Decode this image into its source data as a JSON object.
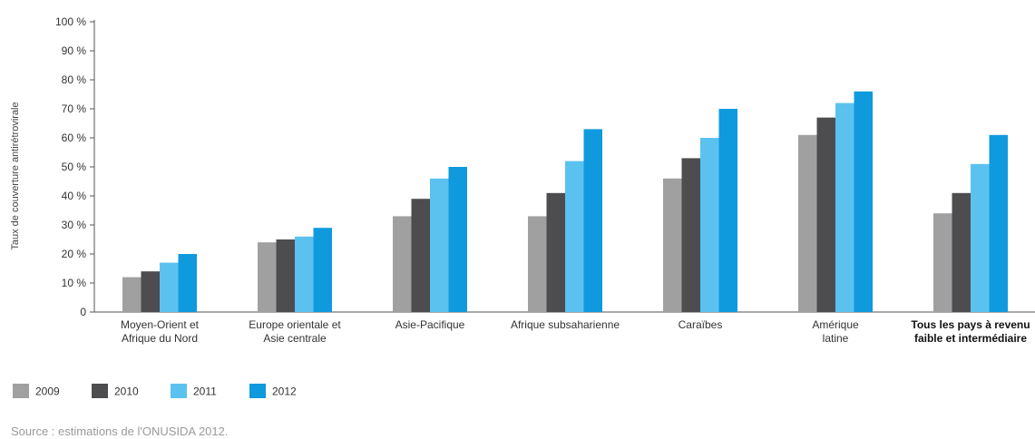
{
  "chart_data": {
    "type": "bar",
    "ylabel": "Taux de couverture antirétrovirale",
    "ylim": [
      0,
      100
    ],
    "yticks": [
      {
        "value": 0,
        "label": "0"
      },
      {
        "value": 10,
        "label": "10 %"
      },
      {
        "value": 20,
        "label": "20 %"
      },
      {
        "value": 30,
        "label": "30 %"
      },
      {
        "value": 40,
        "label": "40 %"
      },
      {
        "value": 50,
        "label": "50 %"
      },
      {
        "value": 60,
        "label": "60 %"
      },
      {
        "value": 70,
        "label": "70 %"
      },
      {
        "value": 80,
        "label": "80 %"
      },
      {
        "value": 90,
        "label": "90 %"
      },
      {
        "value": 100,
        "label": "100 %"
      }
    ],
    "categories": [
      {
        "lines": [
          "Moyen-Orient et",
          "Afrique du Nord"
        ],
        "bold": false
      },
      {
        "lines": [
          "Europe orientale et",
          "Asie centrale"
        ],
        "bold": false
      },
      {
        "lines": [
          "Asie-Pacifique"
        ],
        "bold": false
      },
      {
        "lines": [
          "Afrique subsaharienne"
        ],
        "bold": false
      },
      {
        "lines": [
          "Caraïbes"
        ],
        "bold": false
      },
      {
        "lines": [
          "Amérique",
          "latine"
        ],
        "bold": false
      },
      {
        "lines": [
          "Tous les pays à revenu",
          "faible et intermédiaire"
        ],
        "bold": true
      }
    ],
    "series": [
      {
        "name": "2009",
        "color": "#a0a0a0",
        "values": [
          12,
          24,
          33,
          33,
          46,
          61,
          34
        ]
      },
      {
        "name": "2010",
        "color": "#4d4d4f",
        "values": [
          14,
          25,
          39,
          41,
          53,
          67,
          41
        ]
      },
      {
        "name": "2011",
        "color": "#5bc2f0",
        "values": [
          17,
          26,
          46,
          52,
          60,
          72,
          51
        ]
      },
      {
        "name": "2012",
        "color": "#0f9ade",
        "values": [
          20,
          29,
          50,
          63,
          70,
          76,
          61
        ]
      }
    ],
    "grid": false,
    "legend": "bottom-left"
  },
  "source": "Source : estimations de l'ONUSIDA 2012."
}
